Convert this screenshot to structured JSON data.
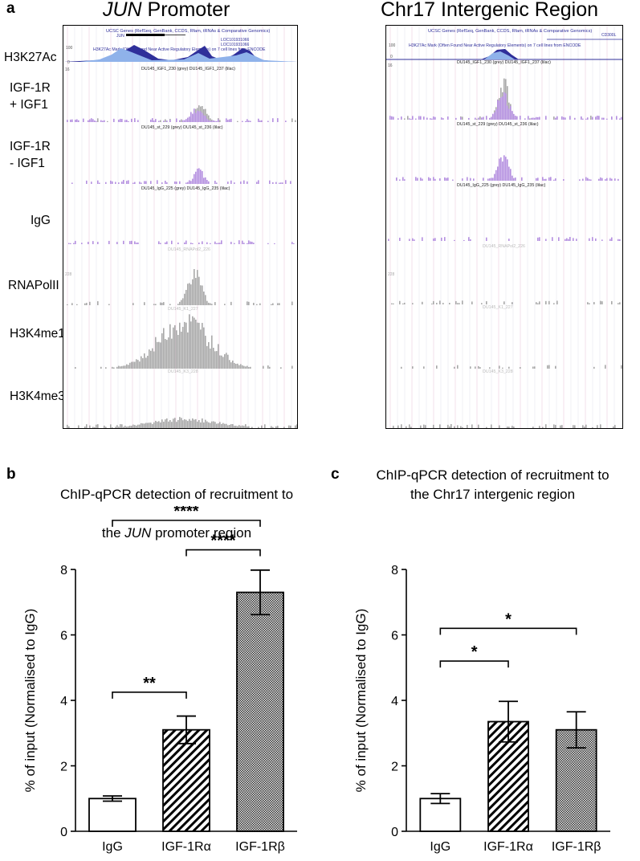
{
  "panel_a": {
    "letter": "a",
    "left_title_gene": "JUN",
    "left_title_rest": " Promoter",
    "right_title": "Chr17 Intergenic Region",
    "row_labels": [
      "H3K27Ac",
      "IGF-1R\n+ IGF1",
      "IGF-1R\n- IGF1",
      "IgG",
      "RNAPolII",
      "H3K4me1",
      "H3K4me3"
    ],
    "left_browser": {
      "header": "UCSC Genes (RefSeq, GenBank, CCDS, Rfam, tRNAs & Comparative Genomics)",
      "gene": "JUN",
      "loc1": "LOC101931066",
      "loc2": "LOC101931066",
      "h3k27ac_text": "H3K27Ac Mark (Often Found Near Active Regulatory Elements) on 7 cell lines from ENCODE",
      "scale_100": "100",
      "scale_0": "0",
      "scale_16": "16",
      "scale_228": "228",
      "track_labels": [
        "DU145_IGF1_230 (grey)  DU145_IGF1_237 (lilac)",
        "DU145_st_229 (grey)  DU145_st_236 (lilac)",
        "DU145_IgG_225 (grey) DU145_IgG_235 (lilac)",
        "DU145_RNAPol2_226",
        "DU145_K1_227",
        "DU145_K3_228"
      ]
    },
    "right_browser": {
      "header": "UCSC Genes (RefSeq, GenBank, CCDS, Rfam, tRNAs & Comparative Genomics)",
      "gene": "CD300L",
      "h3k27ac_text": "H3K27Ac Mark (Often Found Near Active Regulatory Elements) on 7 cell lines from ENCODE",
      "scale_100": "100",
      "scale_0": "0",
      "scale_16": "16",
      "scale_228": "228",
      "track_labels": [
        "DU145_IGF1_230 (grey)  DU145_IGF1_237 (lilac)",
        "DU145_st_229 (grey)  DU145_st_236 (lilac)",
        "DU145_IgG_225 (grey) DU145_IgG_235 (lilac)",
        "DU145_RNAPol2_226",
        "DU145_K1_227",
        "DU145_K3_228"
      ]
    }
  },
  "colors": {
    "lilac": "#b48fe0",
    "grey": "#a8a8a8",
    "dark_blue": "#2f2f9a",
    "light_blue": "#8fb2ea"
  },
  "panel_b": {
    "letter": "b",
    "title_line1": "ChIP-qPCR detection of recruitment to",
    "title_pre": "the ",
    "title_gene": "JUN",
    "title_post": " promoter region"
  },
  "panel_c": {
    "letter": "c",
    "title": "ChIP-qPCR detection of recruitment to\nthe Chr17 intergenic region"
  },
  "chart_data": [
    {
      "type": "bar",
      "title": "ChIP-qPCR detection of recruitment to the JUN promoter region",
      "ylabel": "% of input (Normalised to IgG)",
      "ylim": [
        0,
        8
      ],
      "yticks": [
        "0",
        "2",
        "4",
        "6",
        "8"
      ],
      "categories": [
        "IgG",
        "IGF-1Rα",
        "IGF-1Rβ"
      ],
      "values": [
        1.0,
        3.1,
        7.3
      ],
      "errors": [
        0.08,
        0.42,
        0.68
      ],
      "fills": [
        "open",
        "hatched",
        "crosshatched"
      ],
      "significance": [
        {
          "from": 0,
          "to": 1,
          "label": "**"
        },
        {
          "from": 1,
          "to": 2,
          "label": "****"
        },
        {
          "from": 0,
          "to": 2,
          "label": "****"
        }
      ]
    },
    {
      "type": "bar",
      "title": "ChIP-qPCR detection of recruitment to the Chr17 intergenic region",
      "ylabel": "% of input (Normalised to IgG)",
      "ylim": [
        0,
        8
      ],
      "yticks": [
        "0",
        "2",
        "4",
        "6",
        "8"
      ],
      "categories": [
        "IgG",
        "IGF-1Rα",
        "IGF-1Rβ"
      ],
      "values": [
        1.0,
        3.35,
        3.1
      ],
      "errors": [
        0.15,
        0.62,
        0.55
      ],
      "fills": [
        "open",
        "hatched",
        "crosshatched"
      ],
      "significance": [
        {
          "from": 0,
          "to": 1,
          "label": "*"
        },
        {
          "from": 0,
          "to": 2,
          "label": "*"
        }
      ]
    }
  ]
}
